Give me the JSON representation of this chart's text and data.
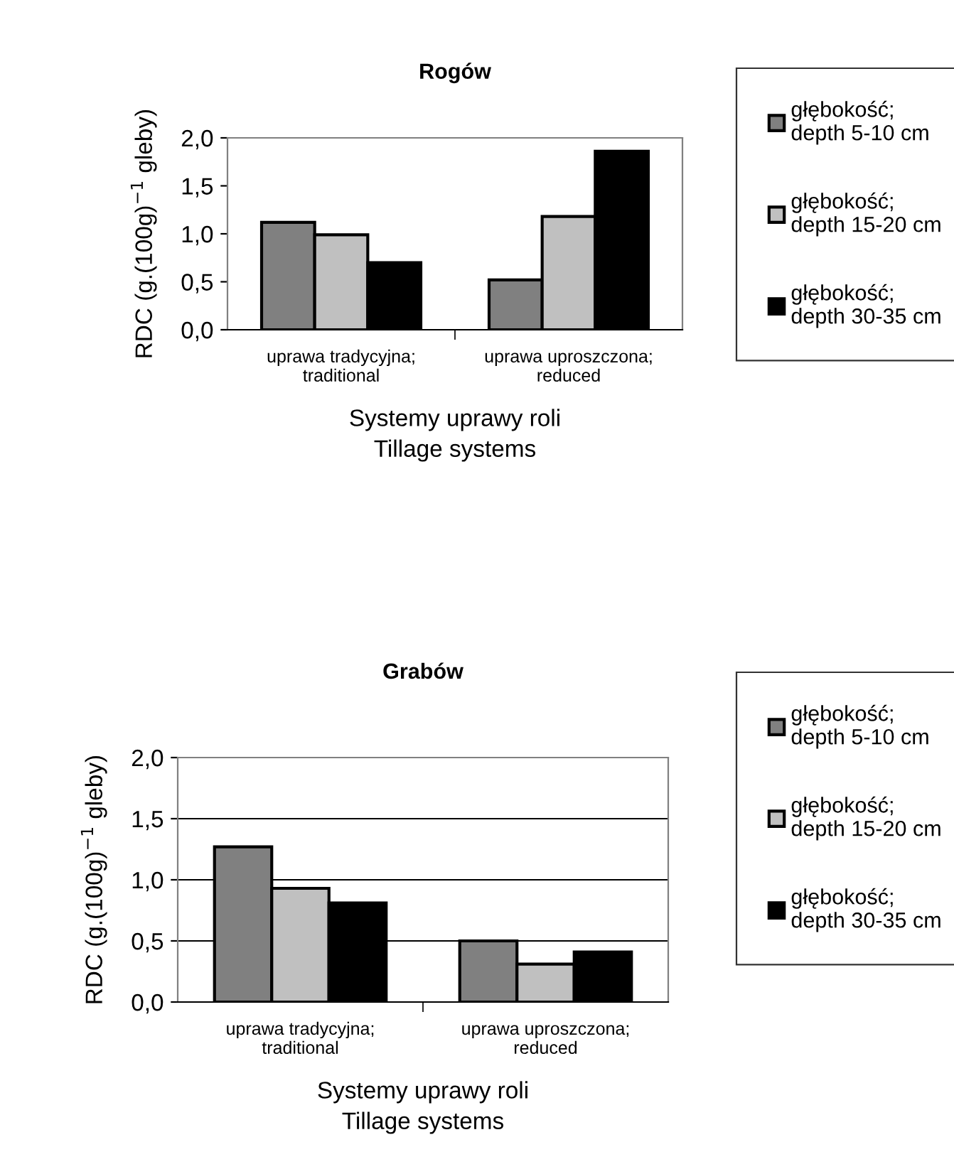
{
  "chart_data": [
    {
      "type": "bar",
      "title": "Rogów",
      "xlabel": "Systemy uprawy roli\nTillage systems",
      "ylabel": "RDC (g.(100g)$^{−1}$ gleby)",
      "categories": [
        "uprawa tradycyjna;\ntraditional",
        "uprawa uproszczona;\nreduced"
      ],
      "series": [
        {
          "name": "głębokość;\ndepth 5-10 cm",
          "color": "#808080",
          "values": [
            1.12,
            0.52
          ]
        },
        {
          "name": "głębokość;\ndepth 15-20 cm",
          "color": "#c0c0c0",
          "values": [
            0.99,
            1.18
          ]
        },
        {
          "name": "głębokość;\ndepth 30-35 cm",
          "color": "#000000",
          "values": [
            0.7,
            1.86
          ]
        }
      ],
      "ylim": [
        0,
        2
      ],
      "yticks": [
        {
          "value": 0,
          "label": "0,0"
        },
        {
          "value": 0.5,
          "label": "0,5"
        },
        {
          "value": 1,
          "label": "1,0"
        },
        {
          "value": 1.5,
          "label": "1,5"
        },
        {
          "value": 2,
          "label": "2,0"
        }
      ],
      "grid": false,
      "legend": "right"
    },
    {
      "type": "bar",
      "title": "Grabów",
      "xlabel": "Systemy uprawy roli\nTillage systems",
      "ylabel": "RDC (g.(100g)$^{−1}$ gleby)",
      "categories": [
        "uprawa tradycyjna;\ntraditional",
        "uprawa uproszczona;\nreduced"
      ],
      "series": [
        {
          "name": "głębokość;\ndepth 5-10 cm",
          "color": "#808080",
          "values": [
            1.27,
            0.5
          ]
        },
        {
          "name": "głębokość;\ndepth 15-20 cm",
          "color": "#c0c0c0",
          "values": [
            0.93,
            0.31
          ]
        },
        {
          "name": "głębokość;\ndepth 30-35 cm",
          "color": "#000000",
          "values": [
            0.81,
            0.41
          ]
        }
      ],
      "ylim": [
        0,
        2
      ],
      "yticks": [
        {
          "value": 0,
          "label": "0,0"
        },
        {
          "value": 0.5,
          "label": "0,5"
        },
        {
          "value": 1,
          "label": "1,0"
        },
        {
          "value": 1.5,
          "label": "1,5"
        },
        {
          "value": 2,
          "label": "2,0"
        }
      ],
      "grid": "y",
      "legend": "right"
    }
  ]
}
